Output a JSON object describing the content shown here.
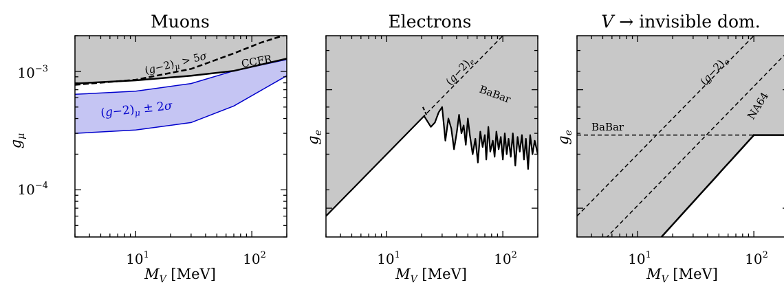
{
  "chart_data": [
    {
      "type": "line",
      "title": "Muons",
      "xlabel": "M_V [MeV]",
      "ylabel": "g_μ",
      "xscale": "log",
      "yscale": "log",
      "xlim": [
        3,
        200
      ],
      "ylim": [
        4e-05,
        0.002
      ],
      "x_ticks": [
        {
          "value": 10,
          "label": "10^1"
        },
        {
          "value": 100,
          "label": "10^2"
        }
      ],
      "y_ticks": [
        {
          "value": 0.001,
          "label": "10^−3"
        },
        {
          "value": 0.0001,
          "label": "10^−4"
        }
      ],
      "series": [
        {
          "name": "CCFR",
          "style": "solid-black",
          "x": [
            3,
            10,
            30,
            70,
            200
          ],
          "y": [
            0.00079,
            0.00084,
            0.00092,
            0.00101,
            0.00128
          ]
        },
        {
          "name": "(g−2)_μ > 5σ",
          "style": "dashed-black",
          "x": [
            3,
            10,
            30,
            70,
            120,
            200
          ],
          "y": [
            0.00077,
            0.00085,
            0.00105,
            0.00142,
            0.00175,
            0.00205
          ]
        },
        {
          "name": "(g−2)_μ ± 2σ",
          "style": "blue-band",
          "x": [
            3,
            10,
            30,
            70,
            200
          ],
          "y_upper": [
            0.00064,
            0.00068,
            0.00079,
            0.00101,
            0.00126
          ],
          "y_lower": [
            0.0003,
            0.00032,
            0.00037,
            0.00051,
            0.00092
          ]
        }
      ],
      "annotations": [
        "(g−2)_μ > 5σ",
        "CCFR",
        "(g−2)_μ ± 2σ"
      ],
      "colors": {
        "excluded": "#c8c8c8",
        "band": "#bfbff2",
        "band_edge": "#0000cc"
      }
    },
    {
      "type": "line",
      "title": "Electrons",
      "xlabel": "M_V [MeV]",
      "ylabel": "g_e",
      "xscale": "log",
      "xlim": [
        3,
        200
      ],
      "x_ticks": [
        {
          "value": 10,
          "label": "10^1"
        },
        {
          "value": 100,
          "label": "10^2"
        }
      ],
      "series": [
        {
          "name": "(g−2)_e",
          "style": "dashed-black",
          "x": [
            3,
            200
          ],
          "y": [
            0.06,
            4.0
          ]
        },
        {
          "name": "BaBar",
          "style": "solid-black",
          "x": [
            3,
            21,
            25,
            30,
            40,
            60,
            100,
            200
          ],
          "y": [
            0.06,
            0.42,
            0.35,
            0.5,
            0.3,
            0.22,
            0.28,
            0.2
          ]
        }
      ],
      "annotations": [
        "(g−2)_e",
        "BaBar"
      ],
      "colors": {
        "excluded": "#c8c8c8"
      }
    },
    {
      "type": "line",
      "title": "V → invisible dom.",
      "xlabel": "M_V [MeV]",
      "ylabel": "g_e",
      "xscale": "log",
      "xlim": [
        3,
        200
      ],
      "x_ticks": [
        {
          "value": 10,
          "label": "10^1"
        },
        {
          "value": 100,
          "label": "10^2"
        }
      ],
      "series": [
        {
          "name": "(g−2)_e",
          "style": "dashed-black",
          "x": [
            3,
            40
          ],
          "y": [
            0.06,
            0.8
          ]
        },
        {
          "name": "BaBar",
          "style": "dashed-black",
          "x": [
            3,
            200
          ],
          "y": [
            0.29,
            0.29
          ]
        },
        {
          "name": "NA64",
          "style": "solid-black",
          "x": [
            16,
            100,
            200
          ],
          "y": [
            0.04,
            0.29,
            0.29
          ]
        }
      ],
      "annotations": [
        "(g−2)_e",
        "BaBar",
        "NA64"
      ],
      "colors": {
        "excluded": "#c8c8c8"
      }
    }
  ]
}
